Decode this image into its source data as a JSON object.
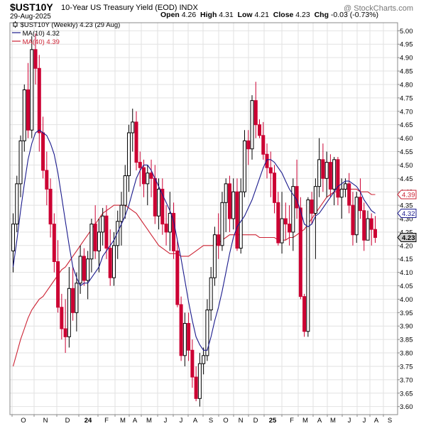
{
  "header": {
    "symbol": "$UST10Y",
    "description": "10-Year US Treasury Yield (EOD)",
    "exchange": "INDX",
    "date": "29-Aug-2025",
    "open_label": "Open",
    "open": "4.26",
    "high_label": "High",
    "high": "4.31",
    "low_label": "Low",
    "low": "4.21",
    "close_label": "Close",
    "close": "4.23",
    "chg_label": "Chg",
    "chg": "-0.03 (-0.73%)",
    "copyright": "@ StockCharts.com",
    "logo_icon": "stockcharts-logo-icon"
  },
  "legend": {
    "main": "$UST10Y (Weekly) 4.23 (29 Aug)",
    "ma10": "MA(10) 4.32",
    "ma40": "MA(40) 4.39"
  },
  "colors": {
    "up": "#000000",
    "down": "#cc0033",
    "ma10": "#1a1a8c",
    "ma40": "#cc2233",
    "grid": "#e2e2e2",
    "last_price_bg": "#cccccc"
  },
  "chart_data": {
    "type": "candlestick",
    "title": "$UST10Y 10-Year US Treasury Yield (EOD)",
    "timeframe": "Weekly",
    "ylim": [
      3.57,
      5.03
    ],
    "y_ticks": [
      "3.60",
      "3.65",
      "3.70",
      "3.75",
      "3.80",
      "3.85",
      "3.90",
      "3.95",
      "4.00",
      "4.05",
      "4.10",
      "4.15",
      "4.20",
      "4.25",
      "4.30",
      "4.35",
      "4.40",
      "4.45",
      "4.50",
      "4.55",
      "4.60",
      "4.65",
      "4.70",
      "4.75",
      "4.80",
      "4.85",
      "4.90",
      "4.95",
      "5.00"
    ],
    "x_ticks": [
      "O",
      "N",
      "D",
      "24",
      "F",
      "M",
      "A",
      "M",
      "J",
      "J",
      "A",
      "S",
      "O",
      "N",
      "D",
      "25",
      "F",
      "M",
      "A",
      "M",
      "J",
      "J",
      "A",
      "S"
    ],
    "grid": true,
    "y_axis_side": "right",
    "price_tags": [
      {
        "label": "4.39",
        "value": 4.39,
        "series": "MA(40)"
      },
      {
        "label": "4.32",
        "value": 4.32,
        "series": "MA(10)"
      },
      {
        "label": "4.23",
        "value": 4.23,
        "series": "last"
      }
    ],
    "ohlc": [
      [
        4.18,
        4.32,
        4.1,
        4.28
      ],
      [
        4.28,
        4.46,
        4.25,
        4.43
      ],
      [
        4.43,
        4.61,
        4.38,
        4.59
      ],
      [
        4.59,
        4.8,
        4.55,
        4.78
      ],
      [
        4.78,
        4.88,
        4.6,
        4.63
      ],
      [
        4.63,
        4.98,
        4.6,
        4.93
      ],
      [
        4.93,
        4.99,
        4.8,
        4.86
      ],
      [
        4.86,
        4.91,
        4.55,
        4.62
      ],
      [
        4.62,
        4.68,
        4.45,
        4.48
      ],
      [
        4.48,
        4.55,
        4.35,
        4.41
      ],
      [
        4.41,
        4.45,
        4.23,
        4.28
      ],
      [
        4.28,
        4.32,
        4.1,
        4.14
      ],
      [
        4.14,
        4.22,
        3.95,
        3.97
      ],
      [
        3.97,
        4.02,
        3.85,
        3.89
      ],
      [
        3.89,
        4.0,
        3.8,
        3.86
      ],
      [
        3.86,
        4.12,
        3.82,
        4.04
      ],
      [
        4.04,
        4.12,
        3.92,
        3.95
      ],
      [
        3.95,
        4.1,
        3.88,
        4.06
      ],
      [
        4.06,
        4.2,
        4.02,
        4.16
      ],
      [
        4.16,
        4.19,
        4.05,
        4.07
      ],
      [
        4.07,
        4.18,
        4.0,
        4.15
      ],
      [
        4.15,
        4.3,
        4.1,
        4.28
      ],
      [
        4.28,
        4.35,
        4.15,
        4.18
      ],
      [
        4.18,
        4.3,
        4.1,
        4.25
      ],
      [
        4.25,
        4.34,
        4.2,
        4.31
      ],
      [
        4.31,
        4.35,
        4.15,
        4.19
      ],
      [
        4.19,
        4.26,
        4.05,
        4.08
      ],
      [
        4.08,
        4.25,
        4.05,
        4.2
      ],
      [
        4.2,
        4.33,
        4.15,
        4.29
      ],
      [
        4.29,
        4.4,
        4.2,
        4.35
      ],
      [
        4.35,
        4.5,
        4.3,
        4.46
      ],
      [
        4.46,
        4.65,
        4.4,
        4.62
      ],
      [
        4.62,
        4.71,
        4.55,
        4.66
      ],
      [
        4.66,
        4.7,
        4.48,
        4.51
      ],
      [
        4.51,
        4.55,
        4.42,
        4.49
      ],
      [
        4.49,
        4.52,
        4.38,
        4.43
      ],
      [
        4.43,
        4.5,
        4.35,
        4.47
      ],
      [
        4.47,
        4.52,
        4.38,
        4.45
      ],
      [
        4.45,
        4.5,
        4.28,
        4.31
      ],
      [
        4.31,
        4.45,
        4.26,
        4.41
      ],
      [
        4.41,
        4.45,
        4.24,
        4.28
      ],
      [
        4.28,
        4.35,
        4.2,
        4.25
      ],
      [
        4.25,
        4.4,
        4.18,
        4.32
      ],
      [
        4.32,
        4.36,
        4.15,
        4.18
      ],
      [
        4.18,
        4.22,
        3.97,
        3.98
      ],
      [
        3.98,
        4.01,
        3.77,
        3.79
      ],
      [
        3.79,
        3.95,
        3.75,
        3.91
      ],
      [
        3.91,
        3.95,
        3.77,
        3.81
      ],
      [
        3.81,
        3.85,
        3.67,
        3.71
      ],
      [
        3.71,
        3.75,
        3.62,
        3.63
      ],
      [
        3.63,
        3.8,
        3.6,
        3.76
      ],
      [
        3.76,
        3.82,
        3.72,
        3.79
      ],
      [
        3.79,
        4.0,
        3.77,
        3.96
      ],
      [
        3.96,
        4.12,
        3.92,
        4.08
      ],
      [
        4.08,
        4.27,
        4.05,
        4.24
      ],
      [
        4.24,
        4.32,
        4.15,
        4.2
      ],
      [
        4.2,
        4.4,
        4.18,
        4.36
      ],
      [
        4.36,
        4.45,
        4.25,
        4.43
      ],
      [
        4.43,
        4.46,
        4.25,
        4.3
      ],
      [
        4.3,
        4.45,
        4.26,
        4.4
      ],
      [
        4.4,
        4.45,
        4.18,
        4.19
      ],
      [
        4.19,
        4.45,
        4.17,
        4.4
      ],
      [
        4.4,
        4.63,
        4.38,
        4.59
      ],
      [
        4.59,
        4.63,
        4.5,
        4.56
      ],
      [
        4.56,
        4.76,
        4.52,
        4.74
      ],
      [
        4.74,
        4.81,
        4.6,
        4.65
      ],
      [
        4.65,
        4.67,
        4.6,
        4.61
      ],
      [
        4.61,
        4.66,
        4.52,
        4.54
      ],
      [
        4.54,
        4.58,
        4.45,
        4.49
      ],
      [
        4.49,
        4.55,
        4.38,
        4.47
      ],
      [
        4.47,
        4.5,
        4.32,
        4.36
      ],
      [
        4.36,
        4.4,
        4.2,
        4.21
      ],
      [
        4.21,
        4.4,
        4.17,
        4.3
      ],
      [
        4.3,
        4.36,
        4.22,
        4.28
      ],
      [
        4.28,
        4.35,
        4.2,
        4.25
      ],
      [
        4.25,
        4.45,
        4.18,
        4.42
      ],
      [
        4.42,
        4.52,
        4.3,
        4.34
      ],
      [
        4.34,
        4.38,
        4.0,
        4.01
      ],
      [
        4.01,
        4.02,
        3.86,
        3.88
      ],
      [
        3.88,
        4.38,
        3.86,
        4.37
      ],
      [
        4.37,
        4.4,
        4.28,
        4.32
      ],
      [
        4.32,
        4.45,
        4.15,
        4.42
      ],
      [
        4.42,
        4.6,
        4.38,
        4.52
      ],
      [
        4.52,
        4.58,
        4.4,
        4.45
      ],
      [
        4.45,
        4.55,
        4.38,
        4.51
      ],
      [
        4.51,
        4.54,
        4.38,
        4.41
      ],
      [
        4.41,
        4.53,
        4.35,
        4.52
      ],
      [
        4.52,
        4.53,
        4.35,
        4.38
      ],
      [
        4.38,
        4.45,
        4.3,
        4.41
      ],
      [
        4.41,
        4.45,
        4.38,
        4.43
      ],
      [
        4.43,
        4.47,
        4.32,
        4.35
      ],
      [
        4.35,
        4.4,
        4.2,
        4.24
      ],
      [
        4.24,
        4.4,
        4.21,
        4.38
      ],
      [
        4.38,
        4.45,
        4.3,
        4.33
      ],
      [
        4.33,
        4.36,
        4.18,
        4.22
      ],
      [
        4.22,
        4.33,
        4.22,
        4.3
      ],
      [
        4.3,
        4.32,
        4.2,
        4.26
      ],
      [
        4.26,
        4.31,
        4.21,
        4.23
      ]
    ],
    "ma10_label": "MA(10)",
    "ma10": [
      4.12,
      4.22,
      4.33,
      4.43,
      4.52,
      4.58,
      4.62,
      4.63,
      4.62,
      4.61,
      4.58,
      4.54,
      4.47,
      4.38,
      4.29,
      4.2,
      4.12,
      4.08,
      4.05,
      4.06,
      4.06,
      4.08,
      4.1,
      4.12,
      4.16,
      4.18,
      4.2,
      4.22,
      4.25,
      4.28,
      4.31,
      4.35,
      4.4,
      4.45,
      4.48,
      4.5,
      4.5,
      4.48,
      4.45,
      4.42,
      4.39,
      4.36,
      4.33,
      4.29,
      4.22,
      4.15,
      4.07,
      3.99,
      3.92,
      3.86,
      3.83,
      3.81,
      3.81,
      3.86,
      3.92,
      3.97,
      4.03,
      4.1,
      4.17,
      4.23,
      4.27,
      4.29,
      4.31,
      4.34,
      4.37,
      4.41,
      4.45,
      4.49,
      4.52,
      4.52,
      4.51,
      4.49,
      4.47,
      4.44,
      4.41,
      4.39,
      4.37,
      4.33,
      4.28,
      4.27,
      4.28,
      4.31,
      4.32,
      4.34,
      4.36,
      4.38,
      4.4,
      4.42,
      4.43,
      4.44,
      4.44,
      4.43,
      4.42,
      4.4,
      4.37,
      4.35,
      4.33,
      4.32
    ],
    "ma40_label": "MA(40)",
    "ma40": [
      3.75,
      3.8,
      3.85,
      3.89,
      3.93,
      3.96,
      3.98,
      4.0,
      4.01,
      4.03,
      4.05,
      4.07,
      4.09,
      4.11,
      4.12,
      4.14,
      4.16,
      4.18,
      4.2,
      4.22,
      4.24,
      4.26,
      4.28,
      4.3,
      4.32,
      4.33,
      4.34,
      4.35,
      4.35,
      4.35,
      4.35,
      4.34,
      4.33,
      4.32,
      4.3,
      4.28,
      4.26,
      4.24,
      4.22,
      4.2,
      4.19,
      4.18,
      4.17,
      4.17,
      4.17,
      4.16,
      4.16,
      4.16,
      4.17,
      4.18,
      4.19,
      4.2,
      4.2,
      4.2,
      4.2,
      4.21,
      4.22,
      4.23,
      4.24,
      4.24,
      4.24,
      4.24,
      4.24,
      4.24,
      4.24,
      4.24,
      4.23,
      4.23,
      4.23,
      4.23,
      4.23,
      4.22,
      4.22,
      4.22,
      4.23,
      4.23,
      4.24,
      4.25,
      4.26,
      4.28,
      4.3,
      4.32,
      4.34,
      4.36,
      4.38,
      4.39,
      4.4,
      4.4,
      4.41,
      4.41,
      4.41,
      4.41,
      4.41,
      4.4,
      4.4,
      4.4,
      4.39,
      4.39
    ]
  }
}
